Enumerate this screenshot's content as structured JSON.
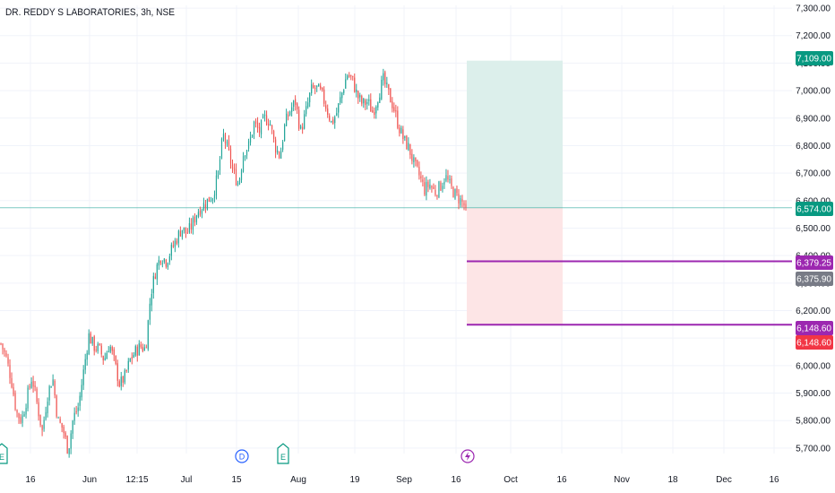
{
  "header": {
    "title": "DR. REDDY S LABORATORIES, 3h, NSE"
  },
  "colors": {
    "up": "#26a69a",
    "down": "#ef5350",
    "grid": "#f0f3fa",
    "axis_text": "#131722",
    "current_price": "#26a69a",
    "target_zone": "#dcefeb",
    "stop_zone": "#fde5e6",
    "level_line": "#9c27b0",
    "tag_target": "#089981",
    "tag_level": "#9c27b0",
    "tag_gray": "#787b86",
    "tag_stop": "#f23645"
  },
  "chart_data": {
    "type": "candlestick",
    "title": "DR. REDDY S LABORATORIES, 3h, NSE",
    "x_ticks": [
      "16",
      "Jun",
      "12:15",
      "Jul",
      "15",
      "Aug",
      "19",
      "Sep",
      "16",
      "Oct",
      "16",
      "Nov",
      "18",
      "Dec",
      "16"
    ],
    "y_ticks": [
      "7,300.00",
      "7,200.00",
      "7,100.00",
      "7,000.00",
      "6,900.00",
      "6,800.00",
      "6,700.00",
      "6,600.00",
      "6,500.00",
      "6,400.00",
      "6,300.00",
      "6,200.00",
      "6,100.00",
      "6,000.00",
      "5,900.00",
      "5,800.00",
      "5,700.00"
    ],
    "ylim": [
      5680,
      7310
    ],
    "grid": true,
    "path": [
      6080,
      6030,
      5950,
      5830,
      5800,
      5880,
      5960,
      5860,
      5760,
      5890,
      5960,
      5800,
      5770,
      5690,
      5810,
      5850,
      5980,
      6110,
      6070,
      6060,
      6020,
      6080,
      6010,
      5930,
      5960,
      6020,
      6050,
      6070,
      6060,
      6260,
      6350,
      6400,
      6380,
      6420,
      6460,
      6500,
      6480,
      6510,
      6560,
      6580,
      6600,
      6620,
      6690,
      6840,
      6780,
      6700,
      6660,
      6780,
      6800,
      6880,
      6850,
      6900,
      6890,
      6800,
      6760,
      6880,
      6930,
      6960,
      6850,
      6920,
      7000,
      7010,
      6990,
      6940,
      6880,
      6920,
      6990,
      7060,
      7040,
      6980,
      6950,
      6960,
      6920,
      6980,
      7040,
      6990,
      6940,
      6870,
      6820,
      6790,
      6730,
      6690,
      6640,
      6660,
      6630,
      6650,
      6690,
      6650,
      6620,
      6600,
      6574
    ],
    "candles_count": 260,
    "last_price": "6,574.00",
    "markers": [
      {
        "type": "E",
        "x_label": "16"
      },
      {
        "type": "D",
        "x_label": "15"
      },
      {
        "type": "E",
        "x_label": "15"
      },
      {
        "type": "lightning",
        "x_label": "16"
      }
    ],
    "position_tool": {
      "target": 7109.0,
      "entry": 6574.0,
      "stop": 6148.6
    },
    "levels": [
      {
        "price": 6379.25
      },
      {
        "price": 6148.6
      }
    ],
    "price_tags": [
      {
        "label": "7,109.00",
        "price": 7109.0,
        "role": "target"
      },
      {
        "label": "6,574.00",
        "price": 6574.0,
        "role": "current"
      },
      {
        "label": "6,379.25",
        "price": 6379.25,
        "role": "level"
      },
      {
        "label": "6,375.90",
        "price": 6375.9,
        "role": "gray"
      },
      {
        "label": "6,148.60",
        "price": 6148.6,
        "role": "level"
      },
      {
        "label": "6,148.60",
        "price": 6148.6,
        "role": "stop"
      }
    ]
  }
}
